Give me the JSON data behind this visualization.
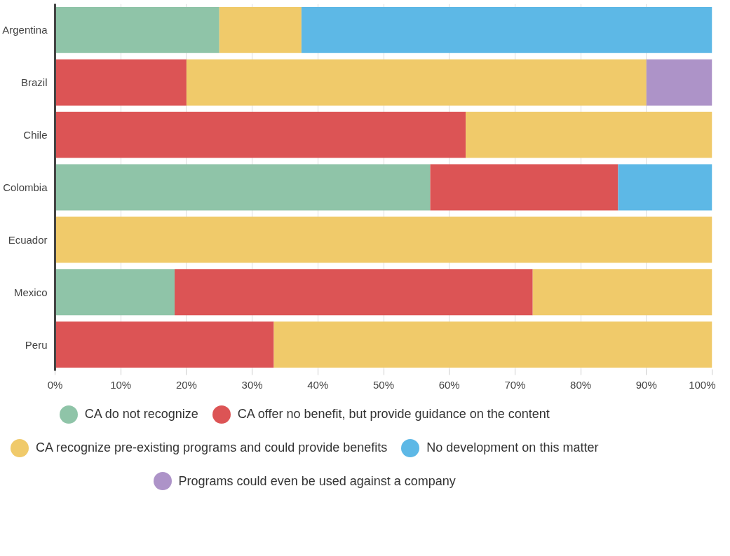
{
  "chart_data": {
    "type": "bar",
    "orientation": "horizontal",
    "stacked": true,
    "categories": [
      "Argentina",
      "Brazil",
      "Chile",
      "Colombia",
      "Ecuador",
      "Mexico",
      "Peru"
    ],
    "series": [
      {
        "name": "CA do not recognize",
        "color": "#8fc4a8",
        "values": [
          25,
          null,
          null,
          57.1,
          null,
          18.2,
          null
        ]
      },
      {
        "name": "CA offer no benefit, but provide guidance on the content",
        "color": "#dc5455",
        "values": [
          null,
          20,
          62.5,
          28.6,
          null,
          54.5,
          33.3
        ]
      },
      {
        "name": "CA recognize pre-existing programs and could provide benefits",
        "color": "#f0ca6a",
        "values": [
          12.5,
          70,
          37.5,
          null,
          100,
          27.3,
          66.7
        ]
      },
      {
        "name": "No development on this matter",
        "color": "#5db8e6",
        "values": [
          62.5,
          null,
          null,
          14.3,
          null,
          null,
          null
        ]
      },
      {
        "name": "Programs could even be used against a company",
        "color": "#ad93c8",
        "values": [
          null,
          10,
          null,
          null,
          null,
          null,
          null
        ]
      }
    ],
    "xlim": [
      0,
      100
    ],
    "xticks": [
      {
        "value": 0,
        "label": "0%"
      },
      {
        "value": 10,
        "label": "10%"
      },
      {
        "value": 20,
        "label": "20%"
      },
      {
        "value": 30,
        "label": "30%"
      },
      {
        "value": 40,
        "label": "40%"
      },
      {
        "value": 50,
        "label": "50%"
      },
      {
        "value": 60,
        "label": "60%"
      },
      {
        "value": 70,
        "label": "70%"
      },
      {
        "value": 80,
        "label": "80%"
      },
      {
        "value": 90,
        "label": "90%"
      },
      {
        "value": 100,
        "label": "100%"
      }
    ],
    "grid": "x",
    "legend": "bottom"
  }
}
